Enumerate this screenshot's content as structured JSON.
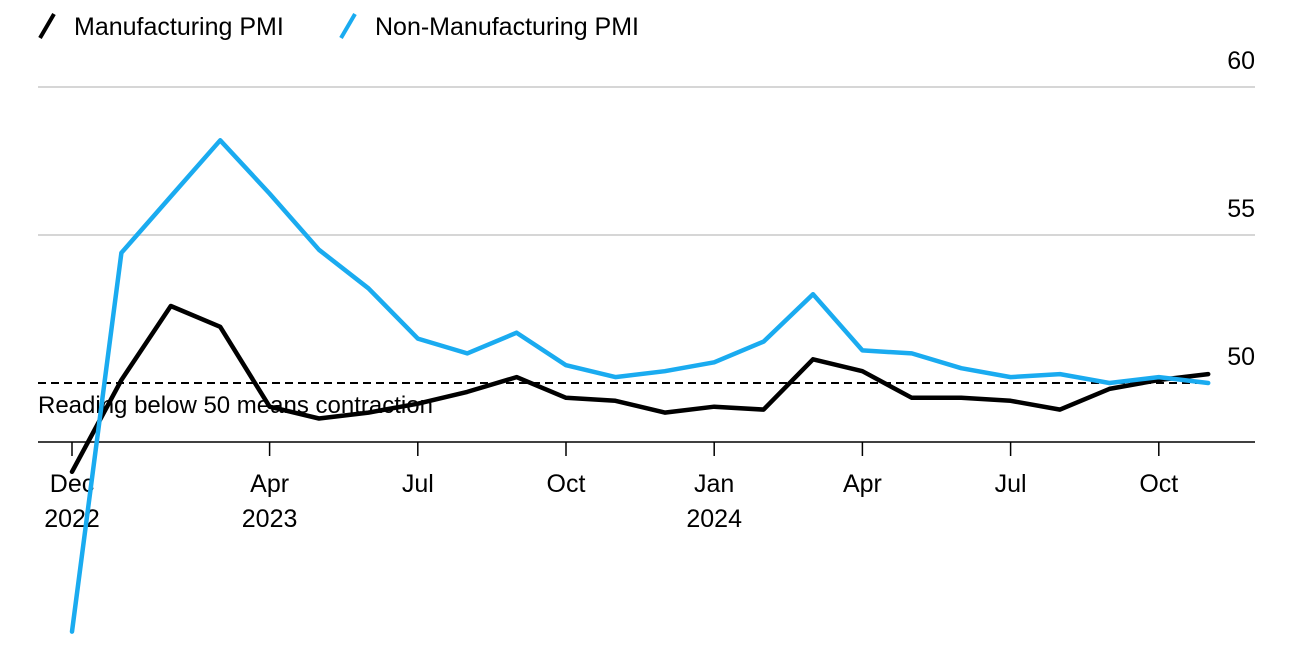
{
  "chart_data": {
    "type": "line",
    "legend": [
      "Manufacturing PMI",
      "Non-Manufacturing PMI"
    ],
    "x": [
      "2022-12",
      "2023-01",
      "2023-02",
      "2023-03",
      "2023-04",
      "2023-05",
      "2023-06",
      "2023-07",
      "2023-08",
      "2023-09",
      "2023-10",
      "2023-11",
      "2023-12",
      "2024-01",
      "2024-02",
      "2024-03",
      "2024-04",
      "2024-05",
      "2024-06",
      "2024-07",
      "2024-08",
      "2024-09",
      "2024-10",
      "2024-11"
    ],
    "series": [
      {
        "name": "Manufacturing PMI",
        "color": "#000000",
        "values": [
          47.0,
          50.1,
          52.6,
          51.9,
          49.2,
          48.8,
          49.0,
          49.3,
          49.7,
          50.2,
          49.5,
          49.4,
          49.0,
          49.2,
          49.1,
          50.8,
          50.4,
          49.5,
          49.5,
          49.4,
          49.1,
          49.8,
          50.1,
          50.3
        ]
      },
      {
        "name": "Non-Manufacturing PMI",
        "color": "#1aabf0",
        "values": [
          41.6,
          54.4,
          56.3,
          58.2,
          56.4,
          54.5,
          53.2,
          51.5,
          51.0,
          51.7,
          50.6,
          50.2,
          50.4,
          50.7,
          51.4,
          53.0,
          51.1,
          51.0,
          50.5,
          50.2,
          50.3,
          50.0,
          50.2,
          50.0
        ]
      }
    ],
    "yticks": [
      "60",
      "55",
      "50"
    ],
    "ylim": [
      41.5,
      60
    ],
    "xticks": [
      {
        "x": "2022-12",
        "label": "Dec",
        "year": "2022"
      },
      {
        "x": "2023-04",
        "label": "Apr",
        "year": "2023"
      },
      {
        "x": "2023-07",
        "label": "Jul",
        "year": ""
      },
      {
        "x": "2023-10",
        "label": "Oct",
        "year": ""
      },
      {
        "x": "2024-01",
        "label": "Jan",
        "year": "2024"
      },
      {
        "x": "2024-04",
        "label": "Apr",
        "year": ""
      },
      {
        "x": "2024-07",
        "label": "Jul",
        "year": ""
      },
      {
        "x": "2024-10",
        "label": "Oct",
        "year": ""
      }
    ],
    "reference_line": {
      "y": 50,
      "label": "Reading below 50 means contraction",
      "style": "dashed"
    },
    "grid": true,
    "y_axis_side": "right",
    "legend_position": "top-left"
  }
}
